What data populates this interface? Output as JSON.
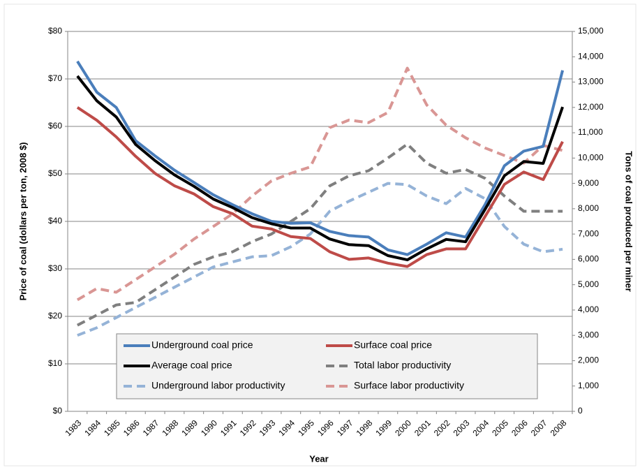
{
  "chart_data": {
    "type": "line",
    "categories": [
      "1983",
      "1984",
      "1985",
      "1986",
      "1987",
      "1988",
      "1989",
      "1990",
      "1991",
      "1992",
      "1993",
      "1994",
      "1995",
      "1996",
      "1997",
      "1998",
      "1999",
      "2000",
      "2001",
      "2002",
      "2003",
      "2004",
      "2005",
      "2006",
      "2007",
      "2008"
    ],
    "x_label": "Year",
    "y_label": "Price of coal (dollars per ton, 2008 $)",
    "y2_label": "Tons  of coal produced per miner",
    "ylim": [
      0,
      80
    ],
    "yticks": [
      {
        "value": 0,
        "label": "$0"
      },
      {
        "value": 10,
        "label": "$10"
      },
      {
        "value": 20,
        "label": "$20"
      },
      {
        "value": 30,
        "label": "$30"
      },
      {
        "value": 40,
        "label": "$40"
      },
      {
        "value": 50,
        "label": "$50"
      },
      {
        "value": 60,
        "label": "$60"
      },
      {
        "value": 70,
        "label": "$70"
      },
      {
        "value": 80,
        "label": "$80"
      }
    ],
    "y2lim": [
      0,
      15000
    ],
    "y2ticks": [
      0,
      {
        "value": 1000,
        "label": "1,000"
      },
      {
        "value": 2000,
        "label": "2,000"
      },
      {
        "value": 3000,
        "label": "3,000"
      },
      {
        "value": 4000,
        "label": "4,000"
      },
      {
        "value": 5000,
        "label": "5,000"
      },
      {
        "value": 6000,
        "label": "6,000"
      },
      {
        "value": 7000,
        "label": "7,000"
      },
      {
        "value": 8000,
        "label": "8,000"
      },
      {
        "value": 9000,
        "label": "9,000"
      },
      {
        "value": 10000,
        "label": "10,000"
      },
      {
        "value": 11000,
        "label": "11,000"
      },
      {
        "value": 12000,
        "label": "12,000"
      },
      {
        "value": 13000,
        "label": "13,000"
      },
      {
        "value": 14000,
        "label": "14,000"
      },
      {
        "value": 15000,
        "label": "15,000"
      }
    ],
    "grid": true,
    "series": [
      {
        "name": "Underground coal price",
        "color": "#4a7ebb",
        "style": "solid",
        "axis": "y",
        "values": [
          73.7,
          67.2,
          64,
          57,
          53.8,
          50.8,
          48.2,
          45.6,
          43.5,
          41.6,
          40,
          39.6,
          39.7,
          37.9,
          37,
          36.7,
          34,
          33,
          35.2,
          37.6,
          36.7,
          43.5,
          51.7,
          54.8,
          55.8,
          71.8
        ]
      },
      {
        "name": "Surface coal price",
        "color": "#be4b48",
        "style": "solid",
        "axis": "y",
        "values": [
          64,
          61.3,
          57.8,
          53.7,
          50.1,
          47.5,
          45.8,
          43.1,
          41.6,
          39,
          38.4,
          36.8,
          36.4,
          33.6,
          32,
          32.3,
          31.2,
          30.5,
          33,
          34.2,
          34.2,
          41,
          47.8,
          50.4,
          48.8,
          56.8
        ]
      },
      {
        "name": "Average coal price",
        "color": "#000000",
        "style": "solid",
        "axis": "y",
        "values": [
          70.6,
          65.4,
          62,
          56.2,
          52.8,
          49.8,
          47.4,
          44.7,
          42.9,
          40.8,
          39.5,
          38.6,
          38.6,
          36.3,
          35.1,
          34.9,
          32.8,
          31.9,
          34.2,
          36.2,
          35.7,
          42.5,
          49.6,
          52.6,
          52.2,
          64.1
        ]
      },
      {
        "name": "Total labor productivity",
        "color": "#7f7f7f",
        "style": "dashed",
        "axis": "y2",
        "values": [
          3400,
          3800,
          4200,
          4300,
          4800,
          5300,
          5800,
          6100,
          6300,
          6700,
          7000,
          7500,
          8000,
          8900,
          9300,
          9500,
          10000,
          10550,
          9800,
          9400,
          9550,
          9200,
          8500,
          7900,
          7900,
          7900
        ]
      },
      {
        "name": "Underground labor productivity",
        "color": "#95b3d7",
        "style": "dashed",
        "axis": "y2",
        "values": [
          3000,
          3300,
          3700,
          4100,
          4500,
          4900,
          5300,
          5700,
          5900,
          6100,
          6150,
          6500,
          7000,
          7900,
          8300,
          8650,
          9000,
          8950,
          8500,
          8200,
          8800,
          8400,
          7300,
          6600,
          6300,
          6400
        ]
      },
      {
        "name": "Surface labor productivity",
        "color": "#d99694",
        "style": "dashed",
        "axis": "y2",
        "values": [
          4400,
          4850,
          4700,
          5200,
          5700,
          6200,
          6800,
          7300,
          7800,
          8500,
          9100,
          9400,
          9650,
          11200,
          11500,
          11400,
          11800,
          13550,
          12100,
          11300,
          10800,
          10400,
          10100,
          9800,
          10500,
          10300
        ]
      }
    ]
  }
}
